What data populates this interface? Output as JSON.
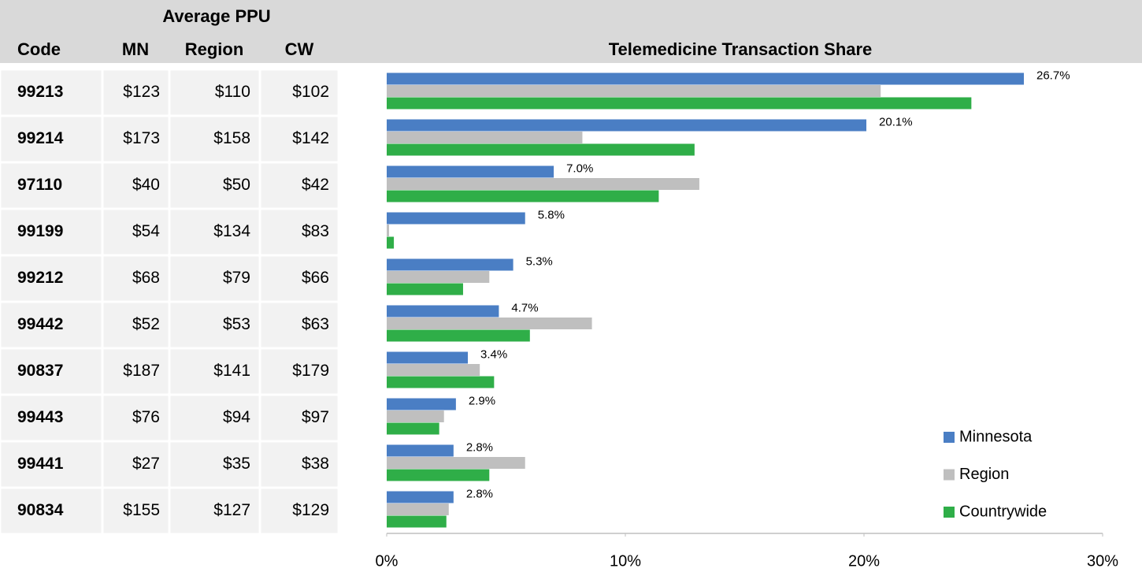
{
  "table": {
    "group_header": "Average PPU",
    "columns": [
      "Code",
      "MN",
      "Region",
      "CW"
    ],
    "rows": [
      [
        "99213",
        "$123",
        "$110",
        "$102"
      ],
      [
        "99214",
        "$173",
        "$158",
        "$142"
      ],
      [
        "97110",
        "$40",
        "$50",
        "$42"
      ],
      [
        "99199",
        "$54",
        "$134",
        "$83"
      ],
      [
        "99212",
        "$68",
        "$79",
        "$66"
      ],
      [
        "99442",
        "$52",
        "$53",
        "$63"
      ],
      [
        "90837",
        "$187",
        "$141",
        "$179"
      ],
      [
        "99443",
        "$76",
        "$94",
        "$97"
      ],
      [
        "99441",
        "$27",
        "$35",
        "$38"
      ],
      [
        "90834",
        "$155",
        "$127",
        "$129"
      ]
    ]
  },
  "chart_data": {
    "type": "hbar",
    "title": "Telemedicine Transaction Share",
    "categories": [
      "99213",
      "99214",
      "97110",
      "99199",
      "99212",
      "99442",
      "90837",
      "99443",
      "99441",
      "90834"
    ],
    "series": [
      {
        "name": "Minnesota",
        "color": "#4a7ec4",
        "values": [
          26.7,
          20.1,
          7.0,
          5.8,
          5.3,
          4.7,
          3.4,
          2.9,
          2.8,
          2.8
        ],
        "value_labels": [
          "26.7%",
          "20.1%",
          "7.0%",
          "5.8%",
          "5.3%",
          "4.7%",
          "3.4%",
          "2.9%",
          "2.8%",
          "2.8%"
        ]
      },
      {
        "name": "Region",
        "color": "#bfbfbf",
        "values": [
          20.7,
          8.2,
          13.1,
          0.1,
          4.3,
          8.6,
          3.9,
          2.4,
          5.8,
          2.6
        ]
      },
      {
        "name": "Countrywide",
        "color": "#2fae48",
        "values": [
          24.5,
          12.9,
          11.4,
          0.3,
          3.2,
          6.0,
          4.5,
          2.2,
          4.3,
          2.5
        ]
      }
    ],
    "xlim": [
      0,
      30
    ],
    "xticks": [
      {
        "value": 0,
        "label": "0%"
      },
      {
        "value": 10,
        "label": "10%"
      },
      {
        "value": 20,
        "label": "20%"
      },
      {
        "value": 30,
        "label": "30%"
      }
    ],
    "legend": "lower right"
  }
}
